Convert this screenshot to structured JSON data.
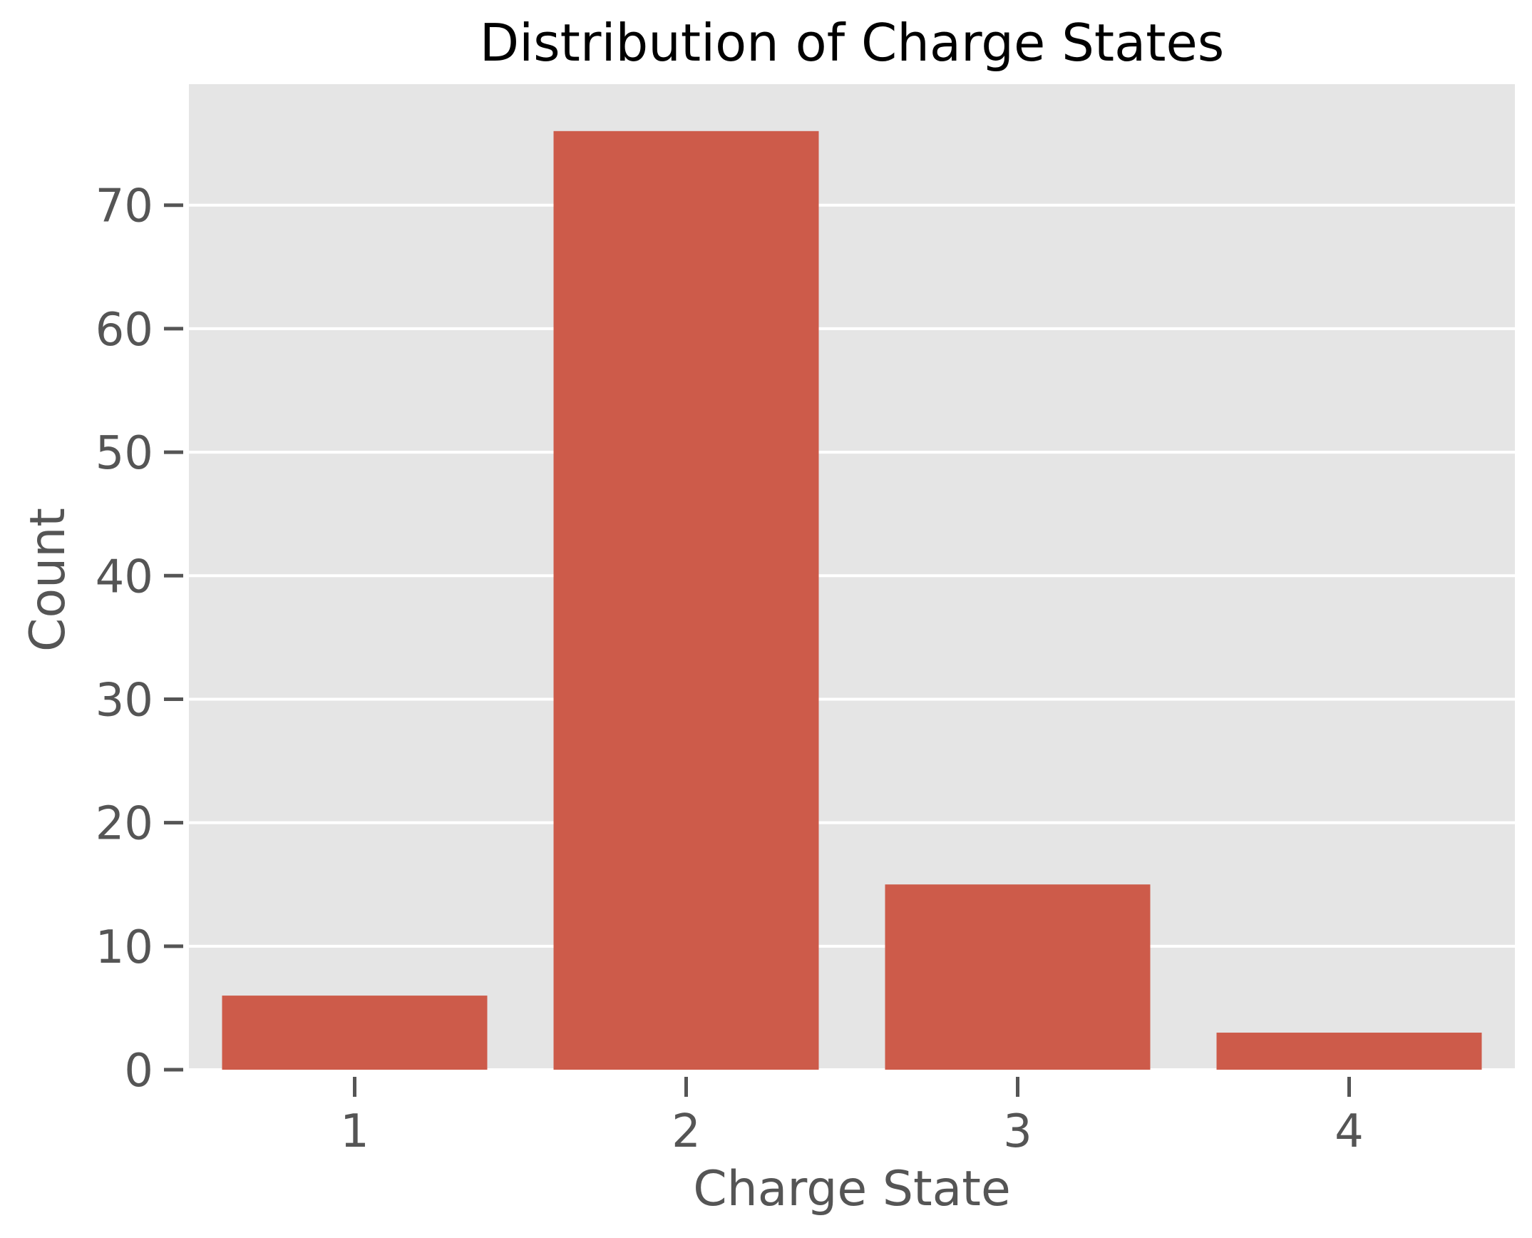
{
  "chart_data": {
    "type": "bar",
    "title": "Distribution of Charge States",
    "xlabel": "Charge State",
    "ylabel": "Count",
    "categories": [
      "1",
      "2",
      "3",
      "4"
    ],
    "values": [
      6,
      76,
      15,
      3
    ],
    "ylim": [
      0,
      79.8
    ],
    "yticks": [
      0,
      10,
      20,
      30,
      40,
      50,
      60,
      70
    ],
    "grid": true,
    "colors": {
      "bar": "#CD5B4A",
      "plot_background": "#E5E5E5",
      "gridline": "#FFFFFF",
      "tick": "#555555"
    }
  }
}
